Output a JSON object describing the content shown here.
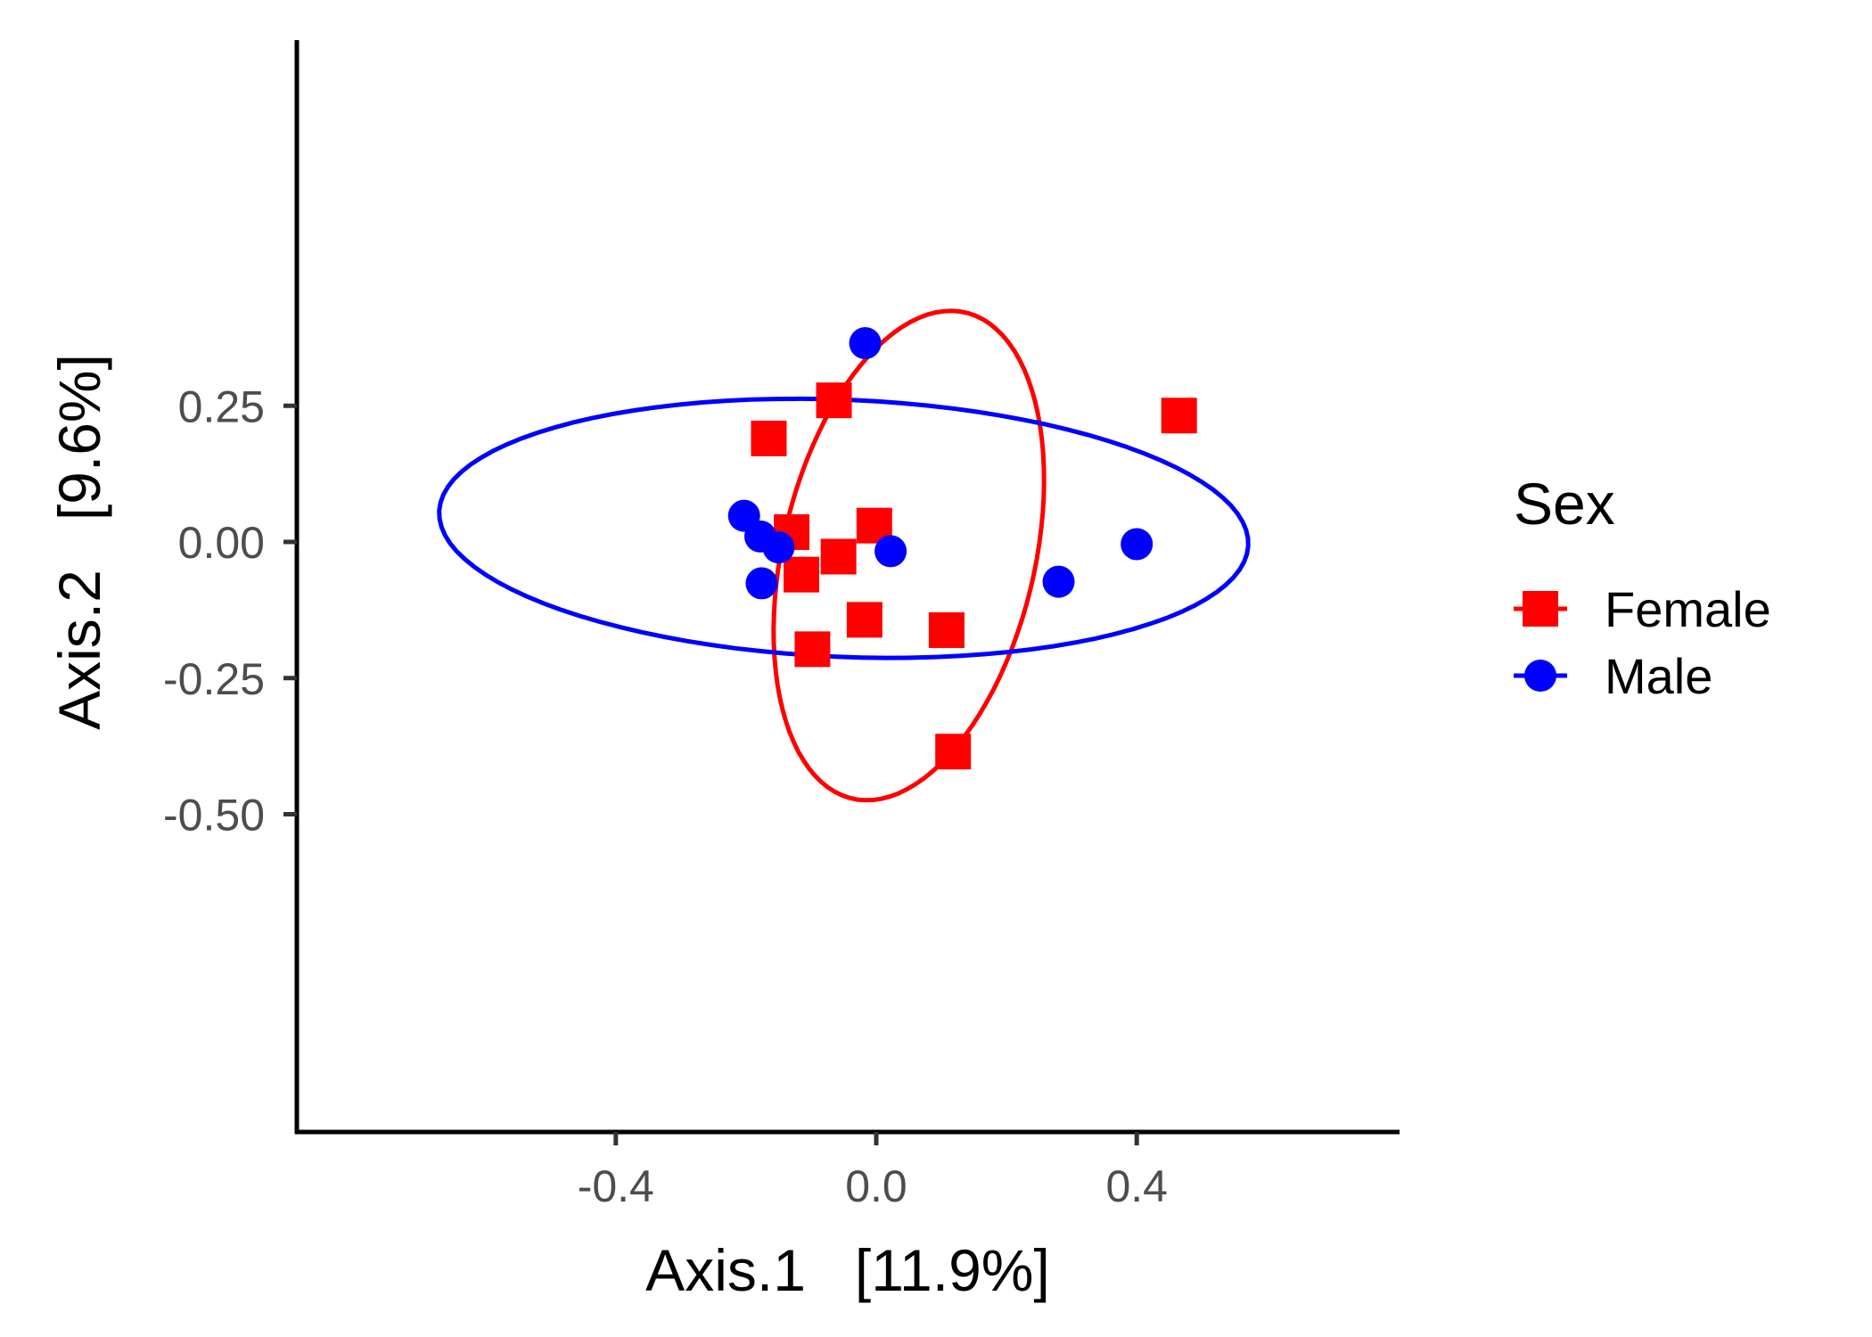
{
  "chart_data": {
    "type": "scatter",
    "xlabel": "Axis.1   [11.9%]",
    "ylabel": "Axis.2   [9.6%]",
    "xlim": [
      -0.72,
      0.65
    ],
    "ylim": [
      -0.54,
      0.46
    ],
    "x_ticks": [
      -0.4,
      0.0,
      0.4
    ],
    "x_tick_labels": [
      "-0.4",
      "0.0",
      "0.4"
    ],
    "y_ticks": [
      0.25,
      0.0,
      -0.25,
      -0.5
    ],
    "y_tick_labels": [
      "0.25",
      "0.00",
      "-0.25",
      "-0.50"
    ],
    "grid": false,
    "legend": {
      "title": "Sex",
      "position": "right"
    },
    "series": [
      {
        "name": "Female",
        "color": "#ff0000",
        "marker": "square",
        "points": [
          {
            "x": -0.065,
            "y": 0.26
          },
          {
            "x": -0.165,
            "y": 0.19
          },
          {
            "x": 0.465,
            "y": 0.232
          },
          {
            "x": -0.13,
            "y": 0.018
          },
          {
            "x": -0.003,
            "y": 0.03
          },
          {
            "x": -0.058,
            "y": -0.027
          },
          {
            "x": -0.115,
            "y": -0.06
          },
          {
            "x": -0.018,
            "y": -0.143
          },
          {
            "x": 0.108,
            "y": -0.162
          },
          {
            "x": -0.098,
            "y": -0.197
          },
          {
            "x": 0.118,
            "y": -0.385
          }
        ],
        "ellipse": {
          "cx": 0.05,
          "cy": -0.025,
          "rx": 0.195,
          "ry": 0.455,
          "angle_deg": -10
        }
      },
      {
        "name": "Male",
        "color": "#0000ff",
        "marker": "circle",
        "points": [
          {
            "x": -0.017,
            "y": 0.365
          },
          {
            "x": -0.203,
            "y": 0.048
          },
          {
            "x": -0.178,
            "y": 0.01
          },
          {
            "x": -0.15,
            "y": -0.01
          },
          {
            "x": 0.022,
            "y": -0.017
          },
          {
            "x": -0.176,
            "y": -0.076
          },
          {
            "x": 0.28,
            "y": -0.073
          },
          {
            "x": 0.4,
            "y": -0.004
          }
        ],
        "ellipse": {
          "cx": -0.05,
          "cy": 0.025,
          "rx": 0.622,
          "ry": 0.236,
          "angle_deg": -3
        }
      }
    ]
  }
}
